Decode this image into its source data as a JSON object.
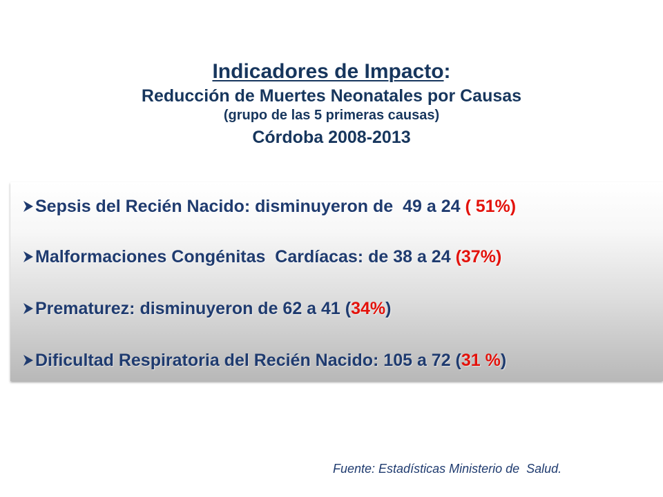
{
  "title": {
    "heading": "Indicadores de Impacto",
    "colon": ":",
    "subtitle": "Reducción de Muertes Neonatales por Causas",
    "note": "(grupo de las 5 primeras causas)",
    "place_period": "Córdoba 2008-2013"
  },
  "items": [
    {
      "text": "Sepsis del Recién Nacido: disminuyeron de  49 a 24 ",
      "open": "( ",
      "pct": "51%",
      "close": ")"
    },
    {
      "text": "Malformaciones Congénitas  Cardíacas: de 38 a 24 ",
      "open": "(",
      "pct": "37%",
      "close": ")"
    },
    {
      "text": "Prematurez: disminuyeron de 62 a 41 (",
      "open": "",
      "pct": "34%",
      "close": ")"
    },
    {
      "text": "Dificultad Respiratoria del Recién Nacido: 105 a 72 (",
      "open": "",
      "pct": "31 %",
      "close": ")"
    }
  ],
  "source": "Fuente: Estadísticas Ministerio de  Salud.",
  "colors": {
    "heading": "#17365d",
    "body": "#1f3b6f",
    "highlight": "#e3120b",
    "bullet": "#1f3b6f"
  },
  "icons": {
    "bullet": "arrowhead-bullet-icon"
  }
}
